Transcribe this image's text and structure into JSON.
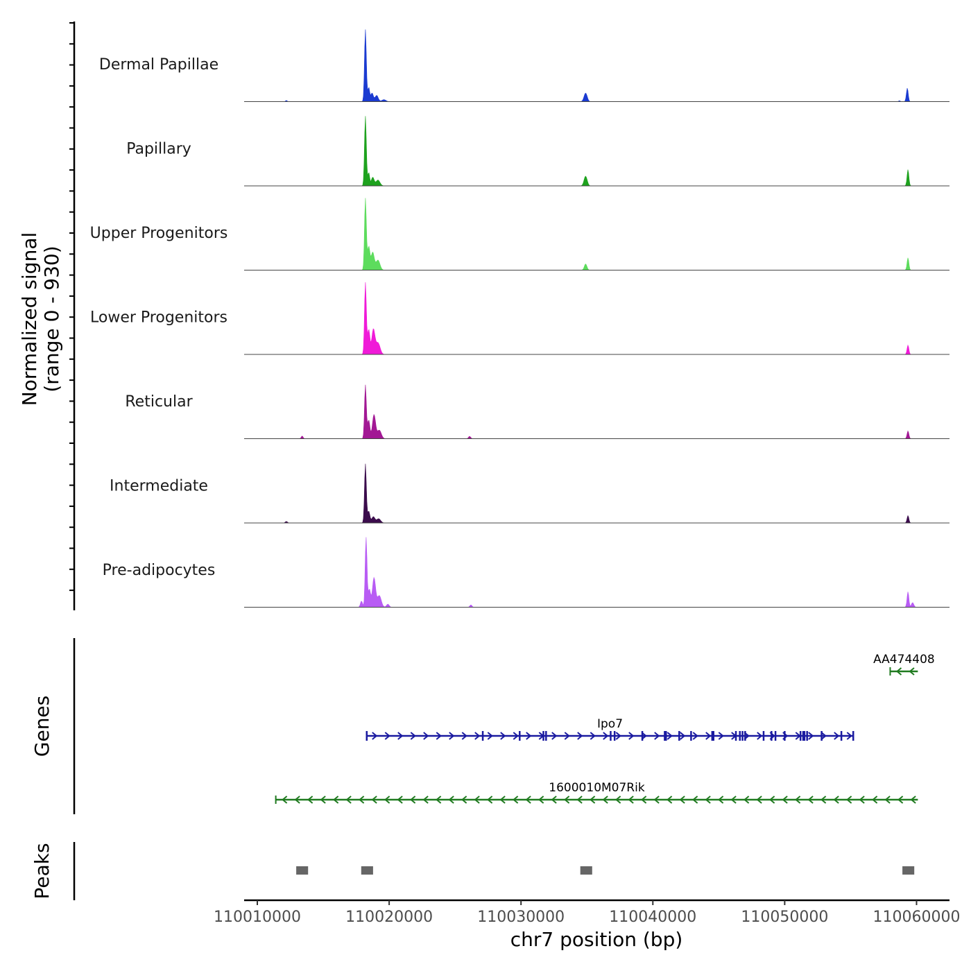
{
  "chart_data": {
    "type": "area",
    "chromosome": "chr7",
    "x_range": [
      110009000,
      110062500
    ],
    "y_axis_label": "Normalized signal",
    "y_axis_range_label": "(range 0 - 930)",
    "y_range": [
      0,
      930
    ],
    "x_axis_label": "chr7 position (bp)",
    "x_ticks": [
      110010000,
      110020000,
      110030000,
      110040000,
      110050000,
      110060000
    ],
    "x_tick_labels": [
      "110010000",
      "110020000",
      "110030000",
      "110040000",
      "110050000",
      "110060000"
    ],
    "series": [
      {
        "name": "Dermal Papillae",
        "color": "#1b3bd1",
        "peaks": [
          [
            110018200,
            930,
            70
          ],
          [
            110018450,
            180,
            70
          ],
          [
            110018700,
            110,
            100
          ],
          [
            110019050,
            80,
            120
          ],
          [
            110019600,
            25,
            150
          ],
          [
            110034900,
            110,
            120
          ],
          [
            110059300,
            175,
            70
          ],
          [
            110012200,
            15,
            60
          ],
          [
            110058700,
            12,
            60
          ]
        ]
      },
      {
        "name": "Papillary",
        "color": "#1ea21e",
        "peaks": [
          [
            110018200,
            900,
            70
          ],
          [
            110018450,
            170,
            70
          ],
          [
            110018750,
            110,
            110
          ],
          [
            110019150,
            75,
            150
          ],
          [
            110034900,
            125,
            120
          ],
          [
            110059350,
            210,
            70
          ]
        ]
      },
      {
        "name": "Upper Progenitors",
        "color": "#5ddc5d",
        "peaks": [
          [
            110018200,
            930,
            70
          ],
          [
            110018450,
            300,
            90
          ],
          [
            110018750,
            230,
            120
          ],
          [
            110019150,
            130,
            150
          ],
          [
            110034900,
            80,
            100
          ],
          [
            110059350,
            160,
            70
          ]
        ]
      },
      {
        "name": "Lower Progenitors",
        "color": "#f01ad8",
        "peaks": [
          [
            110018200,
            930,
            70
          ],
          [
            110018450,
            320,
            90
          ],
          [
            110018800,
            320,
            120
          ],
          [
            110019150,
            150,
            160
          ],
          [
            110059350,
            120,
            70
          ]
        ]
      },
      {
        "name": "Reticular",
        "color": "#a21894",
        "peaks": [
          [
            110018200,
            690,
            70
          ],
          [
            110018450,
            240,
            90
          ],
          [
            110018850,
            310,
            120
          ],
          [
            110019250,
            110,
            150
          ],
          [
            110013400,
            35,
            70
          ],
          [
            110026100,
            30,
            80
          ],
          [
            110059350,
            100,
            70
          ]
        ]
      },
      {
        "name": "Intermediate",
        "color": "#3b0c4c",
        "peaks": [
          [
            110018200,
            760,
            70
          ],
          [
            110018450,
            150,
            90
          ],
          [
            110018800,
            80,
            120
          ],
          [
            110019200,
            55,
            150
          ],
          [
            110012200,
            20,
            80
          ],
          [
            110059350,
            95,
            70
          ]
        ]
      },
      {
        "name": "Pre-adipocytes",
        "color": "#b85cf4",
        "peaks": [
          [
            110018250,
            900,
            70
          ],
          [
            110017900,
            80,
            80
          ],
          [
            110018500,
            230,
            90
          ],
          [
            110018850,
            380,
            120
          ],
          [
            110019250,
            150,
            150
          ],
          [
            110019900,
            40,
            100
          ],
          [
            110026200,
            30,
            80
          ],
          [
            110059350,
            200,
            70
          ],
          [
            110059700,
            60,
            90
          ]
        ]
      }
    ],
    "genes_track_label": "Genes",
    "genes": [
      {
        "name": "AA474408",
        "start": 110058000,
        "end": 110060100,
        "strand": "-",
        "color": "#1f7a1f",
        "exons": [],
        "row": 1
      },
      {
        "name": "Ipo7",
        "start": 110018300,
        "end": 110055200,
        "strand": "+",
        "color": "#1a1aa0",
        "exons": [
          110018300,
          110027100,
          110029900,
          110031700,
          110031900,
          110036800,
          110037100,
          110039200,
          110040900,
          110041000,
          110042000,
          110042900,
          110044500,
          110044600,
          110046300,
          110046600,
          110046800,
          110047000,
          110048400,
          110049000,
          110049300,
          110050000,
          110051200,
          110051400,
          110051500,
          110051700,
          110052800,
          110054300,
          110055200
        ],
        "row": 2
      },
      {
        "name": "1600010M07Rik",
        "start": 110011400,
        "end": 110060100,
        "strand": "-",
        "color": "#1f7a1f",
        "exons": [],
        "row": 3
      }
    ],
    "peaks_track_label": "Peaks",
    "peak_regions": [
      [
        110012950,
        110013850
      ],
      [
        110017880,
        110018780
      ],
      [
        110034500,
        110035400
      ],
      [
        110058930,
        110059830
      ]
    ],
    "peak_color": "#666666"
  }
}
